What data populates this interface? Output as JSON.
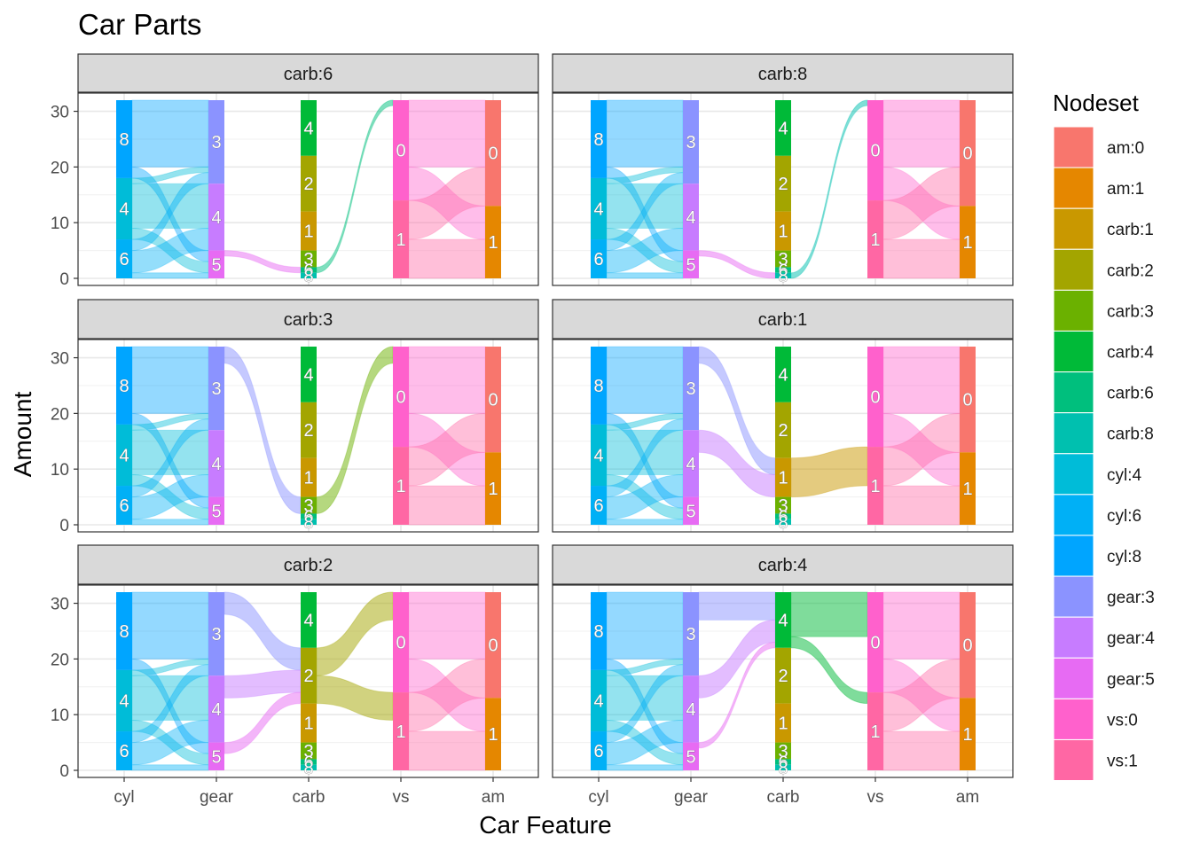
{
  "chart_data": {
    "type": "alluvial",
    "title": "Car Parts",
    "xlabel": "Car Feature",
    "ylabel": "Amount",
    "ylim": [
      0,
      32
    ],
    "yticks": [
      0,
      10,
      20,
      30
    ],
    "axes": [
      "cyl",
      "gear",
      "carb",
      "vs",
      "am"
    ],
    "grid": true,
    "legend_position": "right",
    "legend": {
      "title": "Nodeset",
      "entries": [
        {
          "label": "am:0",
          "color": "#F8766D"
        },
        {
          "label": "am:1",
          "color": "#E58700"
        },
        {
          "label": "carb:1",
          "color": "#C99800"
        },
        {
          "label": "carb:2",
          "color": "#A3A500"
        },
        {
          "label": "carb:3",
          "color": "#6BB100"
        },
        {
          "label": "carb:4",
          "color": "#00BA38"
        },
        {
          "label": "carb:6",
          "color": "#00BF7D"
        },
        {
          "label": "carb:8",
          "color": "#00C0AF"
        },
        {
          "label": "cyl:4",
          "color": "#00BCD8"
        },
        {
          "label": "cyl:6",
          "color": "#00B0F6"
        },
        {
          "label": "cyl:8",
          "color": "#00A5FF"
        },
        {
          "label": "gear:3",
          "color": "#8B93FF"
        },
        {
          "label": "gear:4",
          "color": "#C77CFF"
        },
        {
          "label": "gear:5",
          "color": "#E76BF3"
        },
        {
          "label": "vs:0",
          "color": "#FF61CC"
        },
        {
          "label": "vs:1",
          "color": "#FF67A4"
        }
      ]
    },
    "nodes": {
      "cyl": [
        {
          "label": "8",
          "count": 14,
          "color": "#00A5FF"
        },
        {
          "label": "4",
          "count": 11,
          "color": "#00BCD8"
        },
        {
          "label": "6",
          "count": 7,
          "color": "#00B0F6"
        }
      ],
      "gear": [
        {
          "label": "3",
          "count": 15,
          "color": "#8B93FF"
        },
        {
          "label": "4",
          "count": 12,
          "color": "#C77CFF"
        },
        {
          "label": "5",
          "count": 5,
          "color": "#E76BF3"
        }
      ],
      "carb": [
        {
          "label": "4",
          "count": 10,
          "color": "#00BA38"
        },
        {
          "label": "2",
          "count": 10,
          "color": "#A3A500"
        },
        {
          "label": "1",
          "count": 7,
          "color": "#C99800"
        },
        {
          "label": "3",
          "count": 3,
          "color": "#6BB100"
        },
        {
          "label": "6",
          "count": 1,
          "color": "#00BF7D"
        },
        {
          "label": "8",
          "count": 1,
          "color": "#00C0AF"
        }
      ],
      "vs": [
        {
          "label": "0",
          "count": 18,
          "color": "#FF61CC"
        },
        {
          "label": "1",
          "count": 14,
          "color": "#FF67A4"
        }
      ],
      "am": [
        {
          "label": "0",
          "count": 19,
          "color": "#F8766D"
        },
        {
          "label": "1",
          "count": 13,
          "color": "#E58700"
        }
      ]
    },
    "base_flows": [
      {
        "axis": "cyl",
        "from": "8",
        "to": "3",
        "count": 12,
        "color": "#00A5FF"
      },
      {
        "axis": "cyl",
        "from": "8",
        "to": "5",
        "count": 2,
        "color": "#00A5FF"
      },
      {
        "axis": "cyl",
        "from": "4",
        "to": "3",
        "count": 1,
        "color": "#00BCD8"
      },
      {
        "axis": "cyl",
        "from": "4",
        "to": "4",
        "count": 8,
        "color": "#00BCD8"
      },
      {
        "axis": "cyl",
        "from": "4",
        "to": "5",
        "count": 2,
        "color": "#00BCD8"
      },
      {
        "axis": "cyl",
        "from": "6",
        "to": "3",
        "count": 2,
        "color": "#00B0F6"
      },
      {
        "axis": "cyl",
        "from": "6",
        "to": "4",
        "count": 4,
        "color": "#00B0F6"
      },
      {
        "axis": "cyl",
        "from": "6",
        "to": "5",
        "count": 1,
        "color": "#00B0F6"
      },
      {
        "axis": "vs",
        "from": "0",
        "to": "0",
        "count": 12,
        "color": "#FF61CC"
      },
      {
        "axis": "vs",
        "from": "0",
        "to": "1",
        "count": 6,
        "color": "#FF61CC"
      },
      {
        "axis": "vs",
        "from": "1",
        "to": "0",
        "count": 7,
        "color": "#FF67A4"
      },
      {
        "axis": "vs",
        "from": "1",
        "to": "1",
        "count": 7,
        "color": "#FF67A4"
      }
    ],
    "panels": [
      {
        "strip": "carb:6",
        "flows": [
          {
            "axis": "gear",
            "from": "5",
            "to": "6",
            "count": 1,
            "color": "#E76BF3"
          },
          {
            "axis": "carb",
            "from": "6",
            "to": "0",
            "count": 1,
            "color": "#00BF7D"
          }
        ]
      },
      {
        "strip": "carb:8",
        "flows": [
          {
            "axis": "gear",
            "from": "5",
            "to": "8",
            "count": 1,
            "color": "#E76BF3"
          },
          {
            "axis": "carb",
            "from": "8",
            "to": "0",
            "count": 1,
            "color": "#00C0AF"
          }
        ]
      },
      {
        "strip": "carb:3",
        "flows": [
          {
            "axis": "gear",
            "from": "3",
            "to": "3",
            "count": 3,
            "color": "#8B93FF"
          },
          {
            "axis": "carb",
            "from": "3",
            "to": "0",
            "count": 3,
            "color": "#6BB100"
          }
        ]
      },
      {
        "strip": "carb:1",
        "flows": [
          {
            "axis": "gear",
            "from": "3",
            "to": "1",
            "count": 3,
            "color": "#8B93FF"
          },
          {
            "axis": "gear",
            "from": "4",
            "to": "1",
            "count": 4,
            "color": "#C77CFF"
          },
          {
            "axis": "carb",
            "from": "1",
            "to": "1",
            "count": 7,
            "color": "#C99800"
          }
        ]
      },
      {
        "strip": "carb:2",
        "flows": [
          {
            "axis": "gear",
            "from": "3",
            "to": "2",
            "count": 4,
            "color": "#8B93FF"
          },
          {
            "axis": "gear",
            "from": "4",
            "to": "2",
            "count": 4,
            "color": "#C77CFF"
          },
          {
            "axis": "gear",
            "from": "5",
            "to": "2",
            "count": 2,
            "color": "#E76BF3"
          },
          {
            "axis": "carb",
            "from": "2",
            "to": "0",
            "count": 5,
            "color": "#A3A500"
          },
          {
            "axis": "carb",
            "from": "2",
            "to": "1",
            "count": 5,
            "color": "#A3A500"
          }
        ]
      },
      {
        "strip": "carb:4",
        "flows": [
          {
            "axis": "gear",
            "from": "3",
            "to": "4",
            "count": 5,
            "color": "#8B93FF"
          },
          {
            "axis": "gear",
            "from": "4",
            "to": "4",
            "count": 4,
            "color": "#C77CFF"
          },
          {
            "axis": "gear",
            "from": "5",
            "to": "4",
            "count": 1,
            "color": "#E76BF3"
          },
          {
            "axis": "carb",
            "from": "4",
            "to": "0",
            "count": 8,
            "color": "#00BA38"
          },
          {
            "axis": "carb",
            "from": "4",
            "to": "1",
            "count": 2,
            "color": "#00BA38"
          }
        ]
      }
    ]
  }
}
